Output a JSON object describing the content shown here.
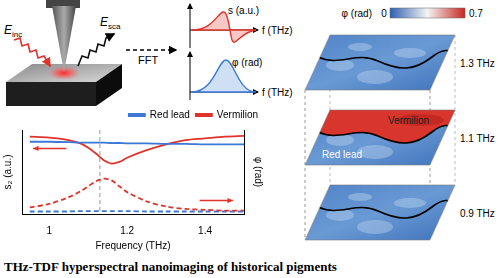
{
  "schematic": {
    "incident": {
      "symbol": "E",
      "subscript": "inc"
    },
    "scattered": {
      "symbol": "E",
      "subscript": "sca"
    },
    "transform": "FFT",
    "amplitude_label": "s (a.u.)",
    "phase_label": "φ (rad)",
    "frequency_label": "f (THz)"
  },
  "maps": {
    "colorbar": {
      "label": "φ (rad)",
      "range": [
        0,
        0.7
      ],
      "ticks": [
        0,
        0.7
      ]
    },
    "layers": [
      {
        "frequency": "1.3 THz"
      },
      {
        "frequency": "1.1 THz",
        "regions": [
          "Vermilion",
          "Red lead"
        ]
      },
      {
        "frequency": "0.9 THz"
      }
    ]
  },
  "chart_data": {
    "type": "line",
    "x_label": "Frequency (THz)",
    "y_label": "s₂ (a.u.)",
    "y2_label": "φ (rad)",
    "x": [
      0.95,
      1.0,
      1.05,
      1.08,
      1.1,
      1.12,
      1.14,
      1.16,
      1.18,
      1.2,
      1.25,
      1.3,
      1.35,
      1.4,
      1.45,
      1.5
    ],
    "series": [
      {
        "name": "Red lead",
        "color": "#3b78d8",
        "line_style": "solid",
        "values": [
          0.86,
          0.86,
          0.855,
          0.85,
          0.85,
          0.85,
          0.85,
          0.845,
          0.845,
          0.84,
          0.84,
          0.835,
          0.835,
          0.83,
          0.83,
          0.83
        ]
      },
      {
        "name": "Vermilion",
        "color": "#e0332b",
        "line_style": "solid",
        "values": [
          0.92,
          0.91,
          0.88,
          0.84,
          0.79,
          0.72,
          0.64,
          0.6,
          0.62,
          0.67,
          0.76,
          0.83,
          0.88,
          0.9,
          0.92,
          0.93
        ]
      },
      {
        "name": "Vermilion",
        "color": "#e0332b",
        "line_style": "dashed",
        "axis": "y2",
        "values": [
          0.08,
          0.12,
          0.2,
          0.27,
          0.33,
          0.39,
          0.42,
          0.4,
          0.33,
          0.26,
          0.15,
          0.09,
          0.06,
          0.05,
          0.04,
          0.04
        ]
      },
      {
        "name": "Red lead",
        "color": "#3b78d8",
        "line_style": "dashed",
        "axis": "y2",
        "values": [
          0.03,
          0.03,
          0.03,
          0.035,
          0.035,
          0.035,
          0.035,
          0.035,
          0.035,
          0.035,
          0.03,
          0.03,
          0.03,
          0.03,
          0.03,
          0.03
        ]
      }
    ],
    "xlim": [
      0.93,
      1.5
    ],
    "xticks": [
      1,
      1.2,
      1.4
    ],
    "ylim": [
      0,
      1
    ],
    "y2lim": [
      0,
      1
    ],
    "tick_labels": "x",
    "grid": false,
    "legend": "top",
    "vline_x": 1.13
  },
  "caption": "THz-TDF hyperspectral nanoimaging of historical pigments"
}
